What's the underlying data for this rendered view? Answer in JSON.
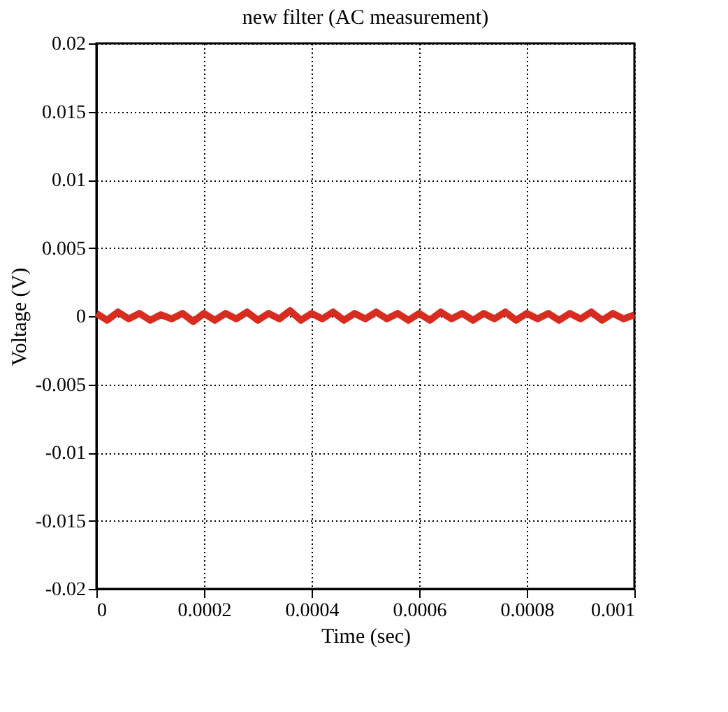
{
  "chart_data": {
    "type": "line",
    "title": "new filter (AC measurement)",
    "xlabel": "Time (sec)",
    "ylabel": "Voltage (V)",
    "x": [
      0,
      2e-05,
      4e-05,
      6e-05,
      8e-05,
      0.0001,
      0.00012,
      0.00014,
      0.00016,
      0.00018,
      0.0002,
      0.00022,
      0.00024,
      0.00026,
      0.00028,
      0.0003,
      0.00032,
      0.00034,
      0.00036,
      0.00038,
      0.0004,
      0.00042,
      0.00044,
      0.00046,
      0.00048,
      0.0005,
      0.00052,
      0.00054,
      0.00056,
      0.00058,
      0.0006,
      0.00062,
      0.00064,
      0.00066,
      0.00068,
      0.0007,
      0.00072,
      0.00074,
      0.00076,
      0.00078,
      0.0008,
      0.00082,
      0.00084,
      0.00086,
      0.00088,
      0.0009,
      0.00092,
      0.00094,
      0.00096,
      0.00098,
      0.001
    ],
    "series": [
      {
        "color": "#d62d20",
        "values": [
          0.0002,
          -0.0003,
          0.0003,
          -0.0002,
          0.0002,
          -0.0003,
          0.0001,
          -0.0002,
          0.0002,
          -0.0004,
          0.0002,
          -0.0003,
          0.0002,
          -0.0002,
          0.0003,
          -0.0003,
          0.0002,
          -0.0002,
          0.0004,
          -0.0003,
          0.0002,
          -0.0002,
          0.0003,
          -0.0003,
          0.0002,
          -0.0002,
          0.0003,
          -0.0002,
          0.0002,
          -0.0003,
          0.0002,
          -0.0003,
          0.0003,
          -0.0002,
          0.0002,
          -0.0003,
          0.0002,
          -0.0002,
          0.0003,
          -0.0003,
          0.0002,
          -0.0002,
          0.0002,
          -0.0003,
          0.0002,
          -0.0002,
          0.0003,
          -0.0003,
          0.0002,
          -0.0002,
          0.0001
        ]
      }
    ],
    "xlim": [
      0,
      0.001
    ],
    "xticks": [
      0,
      0.0002,
      0.0004,
      0.0006,
      0.0008,
      0.001
    ],
    "ylim": [
      -0.02,
      0.02
    ],
    "yticks": [
      -0.02,
      -0.015,
      -0.01,
      -0.005,
      0,
      0.005,
      0.01,
      0.015,
      0.02
    ],
    "grid": true,
    "marker": "none",
    "line_style": "solid"
  }
}
